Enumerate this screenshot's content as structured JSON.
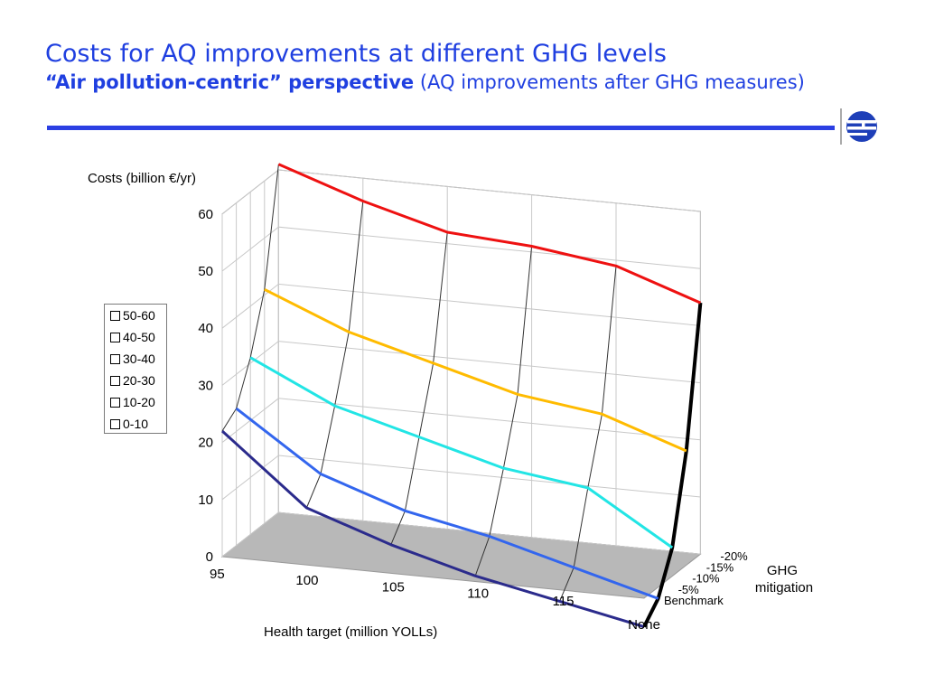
{
  "slide": {
    "title": "Costs for AQ improvements at different GHG levels",
    "subtitle_bold": "“Air pollution-centric” perspective",
    "subtitle_rest": " (AQ improvements after GHG measures)"
  },
  "colors": {
    "title": "#1f3fe0",
    "rule": "#2b3fe3",
    "floor": "#b8b8b8",
    "wire": "#333333"
  },
  "logo": {
    "icon": "institute-logo-icon"
  },
  "chart_data": {
    "type": "surface3d",
    "zlabel": "Costs (billion €/yr)",
    "xlabel": "Health target (million YOLLs)",
    "ylabel": "GHG\nmitigation",
    "z_ticks": [
      "0",
      "10",
      "20",
      "30",
      "40",
      "50",
      "60"
    ],
    "zlim": [
      0,
      60
    ],
    "x_ticks": [
      "95",
      "100",
      "105",
      "110",
      "115",
      "None"
    ],
    "y_ticks": [
      "Benchmark",
      "-5%",
      "-10%",
      "-15%",
      "-20%"
    ],
    "legend": [
      "50-60",
      "40-50",
      "30-40",
      "20-30",
      "10-20",
      "0-10"
    ],
    "grid": true,
    "series": [
      {
        "name": "Benchmark",
        "color": "#2b2b8c",
        "values": [
          22,
          10,
          5,
          1,
          -2,
          -5
        ]
      },
      {
        "name": "-5%",
        "color": "#3366ee",
        "values": [
          24,
          14,
          9,
          6,
          2,
          -2
        ]
      },
      {
        "name": "-10%",
        "color": "#22e5e5",
        "values": [
          31,
          24,
          20,
          16,
          14,
          5
        ]
      },
      {
        "name": "-15%",
        "color": "#ffbb00",
        "values": [
          41,
          35,
          31,
          27,
          25,
          20
        ]
      },
      {
        "name": "-20%",
        "color": "#ee1111",
        "values": [
          61,
          56,
          52,
          51,
          49,
          44
        ]
      }
    ]
  }
}
